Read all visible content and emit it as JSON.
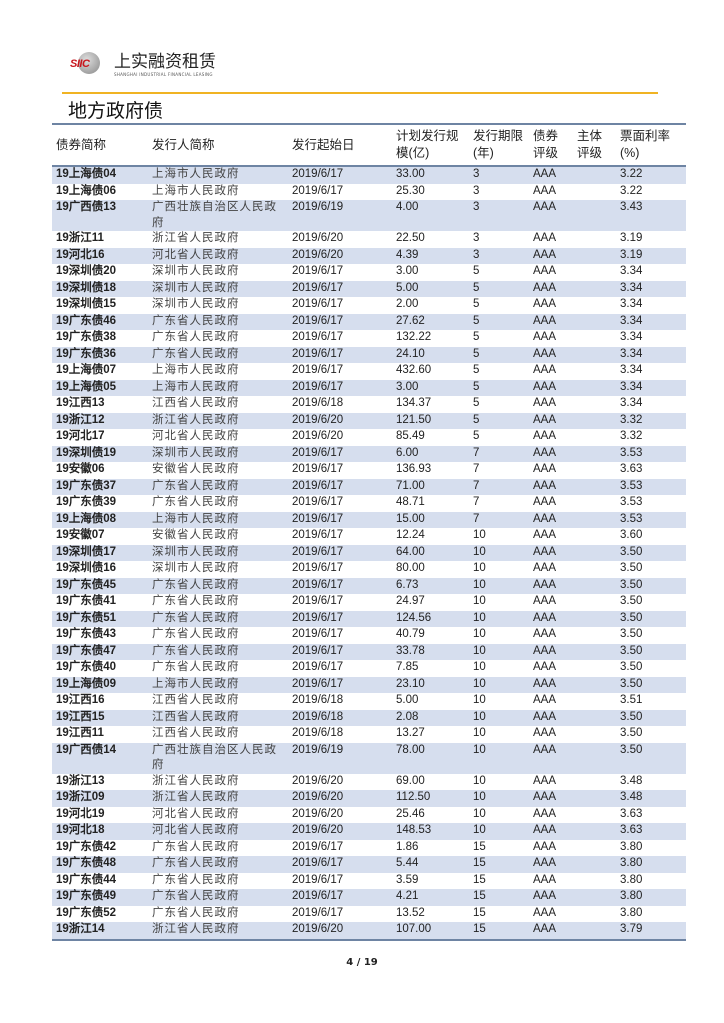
{
  "header": {
    "logo_text": "SIIC",
    "company_cn": "上实融资租赁",
    "company_en": "SHANGHAI INDUSTRIAL FINANCIAL LEASING"
  },
  "section_title": "地方政府债",
  "table": {
    "columns": [
      "债券简称",
      "发行人简称",
      "发行起始日",
      "计划发行规模(亿)",
      "发行期限(年)",
      "债券评级",
      "主体评级",
      "票面利率(%)"
    ],
    "rows": [
      [
        "19上海债04",
        "上海市人民政府",
        "2019/6/17",
        "33.00",
        "3",
        "AAA",
        "",
        "3.22"
      ],
      [
        "19上海债06",
        "上海市人民政府",
        "2019/6/17",
        "25.30",
        "3",
        "AAA",
        "",
        "3.22"
      ],
      [
        "19广西债13",
        "广西壮族自治区人民政府",
        "2019/6/19",
        "4.00",
        "3",
        "AAA",
        "",
        "3.43"
      ],
      [
        "19浙江11",
        "浙江省人民政府",
        "2019/6/20",
        "22.50",
        "3",
        "AAA",
        "",
        "3.19"
      ],
      [
        "19河北16",
        "河北省人民政府",
        "2019/6/20",
        "4.39",
        "3",
        "AAA",
        "",
        "3.19"
      ],
      [
        "19深圳债20",
        "深圳市人民政府",
        "2019/6/17",
        "3.00",
        "5",
        "AAA",
        "",
        "3.34"
      ],
      [
        "19深圳债18",
        "深圳市人民政府",
        "2019/6/17",
        "5.00",
        "5",
        "AAA",
        "",
        "3.34"
      ],
      [
        "19深圳债15",
        "深圳市人民政府",
        "2019/6/17",
        "2.00",
        "5",
        "AAA",
        "",
        "3.34"
      ],
      [
        "19广东债46",
        "广东省人民政府",
        "2019/6/17",
        "27.62",
        "5",
        "AAA",
        "",
        "3.34"
      ],
      [
        "19广东债38",
        "广东省人民政府",
        "2019/6/17",
        "132.22",
        "5",
        "AAA",
        "",
        "3.34"
      ],
      [
        "19广东债36",
        "广东省人民政府",
        "2019/6/17",
        "24.10",
        "5",
        "AAA",
        "",
        "3.34"
      ],
      [
        "19上海债07",
        "上海市人民政府",
        "2019/6/17",
        "432.60",
        "5",
        "AAA",
        "",
        "3.34"
      ],
      [
        "19上海债05",
        "上海市人民政府",
        "2019/6/17",
        "3.00",
        "5",
        "AAA",
        "",
        "3.34"
      ],
      [
        "19江西13",
        "江西省人民政府",
        "2019/6/18",
        "134.37",
        "5",
        "AAA",
        "",
        "3.34"
      ],
      [
        "19浙江12",
        "浙江省人民政府",
        "2019/6/20",
        "121.50",
        "5",
        "AAA",
        "",
        "3.32"
      ],
      [
        "19河北17",
        "河北省人民政府",
        "2019/6/20",
        "85.49",
        "5",
        "AAA",
        "",
        "3.32"
      ],
      [
        "19深圳债19",
        "深圳市人民政府",
        "2019/6/17",
        "6.00",
        "7",
        "AAA",
        "",
        "3.53"
      ],
      [
        "19安徽06",
        "安徽省人民政府",
        "2019/6/17",
        "136.93",
        "7",
        "AAA",
        "",
        "3.63"
      ],
      [
        "19广东债37",
        "广东省人民政府",
        "2019/6/17",
        "71.00",
        "7",
        "AAA",
        "",
        "3.53"
      ],
      [
        "19广东债39",
        "广东省人民政府",
        "2019/6/17",
        "48.71",
        "7",
        "AAA",
        "",
        "3.53"
      ],
      [
        "19上海债08",
        "上海市人民政府",
        "2019/6/17",
        "15.00",
        "7",
        "AAA",
        "",
        "3.53"
      ],
      [
        "19安徽07",
        "安徽省人民政府",
        "2019/6/17",
        "12.24",
        "10",
        "AAA",
        "",
        "3.60"
      ],
      [
        "19深圳债17",
        "深圳市人民政府",
        "2019/6/17",
        "64.00",
        "10",
        "AAA",
        "",
        "3.50"
      ],
      [
        "19深圳债16",
        "深圳市人民政府",
        "2019/6/17",
        "80.00",
        "10",
        "AAA",
        "",
        "3.50"
      ],
      [
        "19广东债45",
        "广东省人民政府",
        "2019/6/17",
        "6.73",
        "10",
        "AAA",
        "",
        "3.50"
      ],
      [
        "19广东债41",
        "广东省人民政府",
        "2019/6/17",
        "24.97",
        "10",
        "AAA",
        "",
        "3.50"
      ],
      [
        "19广东债51",
        "广东省人民政府",
        "2019/6/17",
        "124.56",
        "10",
        "AAA",
        "",
        "3.50"
      ],
      [
        "19广东债43",
        "广东省人民政府",
        "2019/6/17",
        "40.79",
        "10",
        "AAA",
        "",
        "3.50"
      ],
      [
        "19广东债47",
        "广东省人民政府",
        "2019/6/17",
        "33.78",
        "10",
        "AAA",
        "",
        "3.50"
      ],
      [
        "19广东债40",
        "广东省人民政府",
        "2019/6/17",
        "7.85",
        "10",
        "AAA",
        "",
        "3.50"
      ],
      [
        "19上海债09",
        "上海市人民政府",
        "2019/6/17",
        "23.10",
        "10",
        "AAA",
        "",
        "3.50"
      ],
      [
        "19江西16",
        "江西省人民政府",
        "2019/6/18",
        "5.00",
        "10",
        "AAA",
        "",
        "3.51"
      ],
      [
        "19江西15",
        "江西省人民政府",
        "2019/6/18",
        "2.08",
        "10",
        "AAA",
        "",
        "3.50"
      ],
      [
        "19江西11",
        "江西省人民政府",
        "2019/6/18",
        "13.27",
        "10",
        "AAA",
        "",
        "3.50"
      ],
      [
        "19广西债14",
        "广西壮族自治区人民政府",
        "2019/6/19",
        "78.00",
        "10",
        "AAA",
        "",
        "3.50"
      ],
      [
        "19浙江13",
        "浙江省人民政府",
        "2019/6/20",
        "69.00",
        "10",
        "AAA",
        "",
        "3.48"
      ],
      [
        "19浙江09",
        "浙江省人民政府",
        "2019/6/20",
        "112.50",
        "10",
        "AAA",
        "",
        "3.48"
      ],
      [
        "19河北19",
        "河北省人民政府",
        "2019/6/20",
        "25.46",
        "10",
        "AAA",
        "",
        "3.63"
      ],
      [
        "19河北18",
        "河北省人民政府",
        "2019/6/20",
        "148.53",
        "10",
        "AAA",
        "",
        "3.63"
      ],
      [
        "19广东债42",
        "广东省人民政府",
        "2019/6/17",
        "1.86",
        "15",
        "AAA",
        "",
        "3.80"
      ],
      [
        "19广东债48",
        "广东省人民政府",
        "2019/6/17",
        "5.44",
        "15",
        "AAA",
        "",
        "3.80"
      ],
      [
        "19广东债44",
        "广东省人民政府",
        "2019/6/17",
        "3.59",
        "15",
        "AAA",
        "",
        "3.80"
      ],
      [
        "19广东债49",
        "广东省人民政府",
        "2019/6/17",
        "4.21",
        "15",
        "AAA",
        "",
        "3.80"
      ],
      [
        "19广东债52",
        "广东省人民政府",
        "2019/6/17",
        "13.52",
        "15",
        "AAA",
        "",
        "3.80"
      ],
      [
        "19浙江14",
        "浙江省人民政府",
        "2019/6/20",
        "107.00",
        "15",
        "AAA",
        "",
        "3.79"
      ]
    ]
  },
  "footer": {
    "page": "4 / 19"
  },
  "colors": {
    "accent_line": "#f0b323",
    "row_shade": "#d6deee",
    "rule": "#6e84a3",
    "logo_red": "#c8161d"
  }
}
